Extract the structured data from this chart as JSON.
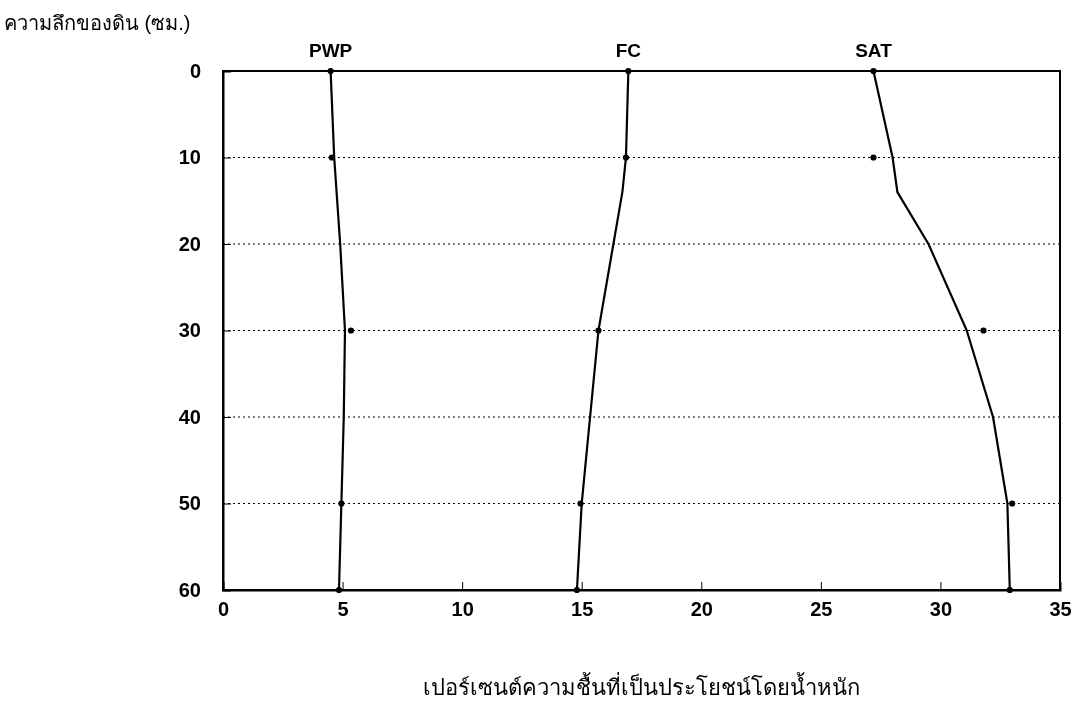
{
  "chart_data": {
    "type": "line",
    "xlabel": "เปอร์เซนต์ความชื้นที่เป็นประโยชน์โดยน้ำหนัก",
    "ylabel": "ความลึกของดิน (ซม.)",
    "xlim": [
      0,
      35
    ],
    "xticks": [
      0,
      5,
      10,
      15,
      20,
      25,
      30,
      35
    ],
    "ylim": [
      60,
      0
    ],
    "yticks": [
      0,
      10,
      20,
      30,
      40,
      50,
      60
    ],
    "grid": "y",
    "line_style": "solid",
    "series": [
      {
        "name": "PWP",
        "marker": "none",
        "color": "#000000",
        "x": [
          4.5,
          4.65,
          4.9,
          5.1,
          5.05,
          4.95,
          4.85
        ],
        "values": [
          0,
          10,
          20,
          30,
          40,
          50,
          60
        ]
      },
      {
        "name": "FC",
        "marker": "none",
        "color": "#000000",
        "x": [
          16.95,
          16.85,
          16.7,
          15.7,
          15.0,
          14.8
        ],
        "values": [
          0,
          10,
          14,
          30,
          50,
          60
        ]
      },
      {
        "name": "SAT",
        "marker": "none",
        "color": "#000000",
        "x": [
          27.2,
          28.0,
          28.2,
          29.5,
          31.1,
          32.2,
          32.8,
          32.9
        ],
        "values": [
          0,
          10,
          14,
          20,
          30,
          40,
          50,
          60
        ]
      },
      {
        "type": "scatter",
        "marker": "circle",
        "color": "#000000",
        "x": [
          4.5,
          4.55,
          5.35,
          4.95,
          4.85
        ],
        "values": [
          0,
          10,
          30,
          50,
          60
        ]
      },
      {
        "type": "scatter",
        "marker": "circle",
        "color": "#000000",
        "x": [
          16.95,
          16.85,
          15.7,
          14.95,
          14.8
        ],
        "values": [
          0,
          10,
          30,
          50,
          60
        ]
      },
      {
        "type": "scatter",
        "marker": "circle",
        "color": "#000000",
        "x": [
          27.2,
          27.2,
          31.8,
          33.0,
          32.9
        ],
        "values": [
          0,
          10,
          30,
          50,
          60
        ]
      }
    ]
  }
}
